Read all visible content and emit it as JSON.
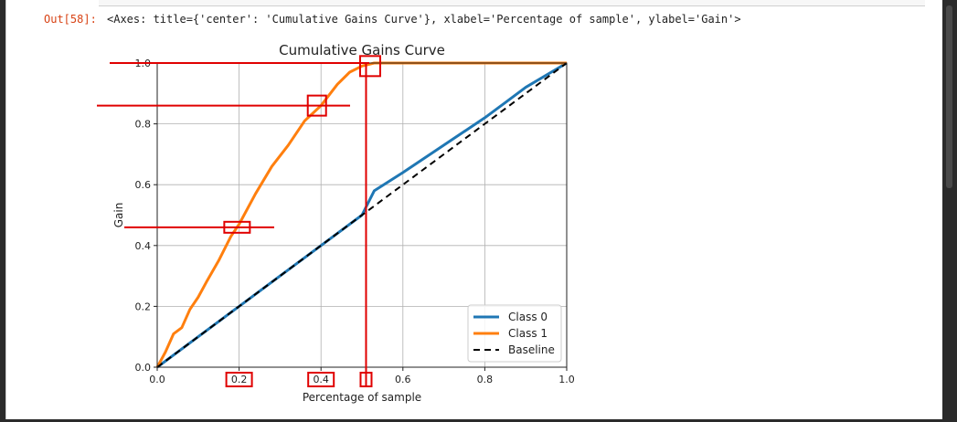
{
  "output": {
    "prompt": "Out[58]:",
    "repr": "<Axes: title={'center': 'Cumulative Gains Curve'}, xlabel='Percentage of sample', ylabel='Gain'>"
  },
  "colors": {
    "class0": "#1f77b4",
    "class1": "#ff7f0e",
    "baseline": "#000000",
    "annotation": "#e00000",
    "grid": "#b0b0b0"
  },
  "chart_data": {
    "type": "line",
    "title": "Cumulative Gains Curve",
    "xlabel": "Percentage of sample",
    "ylabel": "Gain",
    "xlim": [
      0,
      1
    ],
    "ylim": [
      0,
      1
    ],
    "xticks": [
      "0.0",
      "0.2",
      "0.4",
      "0.6",
      "0.8",
      "1.0"
    ],
    "yticks": [
      "0.0",
      "0.2",
      "0.4",
      "0.6",
      "0.8",
      "1.0"
    ],
    "grid": true,
    "legend_position": "lower-right",
    "series": [
      {
        "name": "Class 0",
        "x": [
          0,
          0.1,
          0.2,
          0.3,
          0.4,
          0.5,
          0.53,
          0.6,
          0.7,
          0.8,
          0.85,
          0.9,
          1.0
        ],
        "y": [
          0,
          0.1,
          0.2,
          0.3,
          0.4,
          0.5,
          0.58,
          0.64,
          0.73,
          0.82,
          0.87,
          0.92,
          1.0
        ]
      },
      {
        "name": "Class 1",
        "x": [
          0,
          0.02,
          0.04,
          0.06,
          0.08,
          0.1,
          0.12,
          0.15,
          0.18,
          0.2,
          0.24,
          0.28,
          0.32,
          0.36,
          0.4,
          0.44,
          0.47,
          0.5,
          0.53,
          1.0
        ],
        "y": [
          0,
          0.05,
          0.11,
          0.13,
          0.19,
          0.23,
          0.28,
          0.35,
          0.43,
          0.47,
          0.57,
          0.66,
          0.73,
          0.81,
          0.86,
          0.93,
          0.97,
          0.99,
          1.0,
          1.0
        ]
      },
      {
        "name": "Baseline",
        "x": [
          0,
          1
        ],
        "y": [
          0,
          1
        ]
      }
    ],
    "annotations": {
      "hlines_y": [
        1.0,
        0.86,
        0.46
      ],
      "vline_x": 0.51,
      "boxes": [
        {
          "x": 0.52,
          "y": 0.99
        },
        {
          "x": 0.39,
          "y": 0.86
        },
        {
          "x": 0.195,
          "y": 0.46
        }
      ],
      "highlighted_ticks": [
        "0.2",
        "0.4"
      ],
      "marked_x": 0.51
    }
  }
}
